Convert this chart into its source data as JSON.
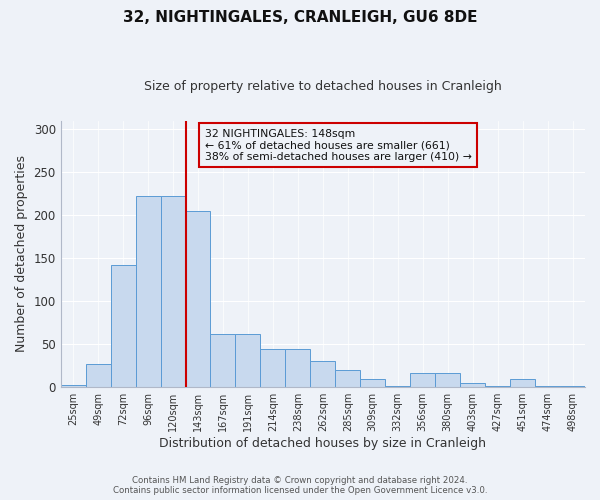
{
  "title": "32, NIGHTINGALES, CRANLEIGH, GU6 8DE",
  "subtitle": "Size of property relative to detached houses in Cranleigh",
  "xlabel": "Distribution of detached houses by size in Cranleigh",
  "ylabel": "Number of detached properties",
  "bin_labels": [
    "25sqm",
    "49sqm",
    "72sqm",
    "96sqm",
    "120sqm",
    "143sqm",
    "167sqm",
    "191sqm",
    "214sqm",
    "238sqm",
    "262sqm",
    "285sqm",
    "309sqm",
    "332sqm",
    "356sqm",
    "380sqm",
    "403sqm",
    "427sqm",
    "451sqm",
    "474sqm",
    "498sqm"
  ],
  "bar_values": [
    3,
    27,
    142,
    222,
    222,
    205,
    62,
    62,
    45,
    44,
    30,
    20,
    10,
    1,
    16,
    16,
    5,
    1,
    9,
    1,
    1
  ],
  "bar_color": "#c8d9ee",
  "bar_edge_color": "#5b9bd5",
  "vline_index": 5,
  "vline_color": "#cc0000",
  "annotation_title": "32 NIGHTINGALES: 148sqm",
  "annotation_line1": "← 61% of detached houses are smaller (661)",
  "annotation_line2": "38% of semi-detached houses are larger (410) →",
  "annotation_box_color": "#cc0000",
  "ylim": [
    0,
    310
  ],
  "yticks": [
    0,
    50,
    100,
    150,
    200,
    250,
    300
  ],
  "footer1": "Contains HM Land Registry data © Crown copyright and database right 2024.",
  "footer2": "Contains public sector information licensed under the Open Government Licence v3.0.",
  "bg_color": "#eef2f8"
}
